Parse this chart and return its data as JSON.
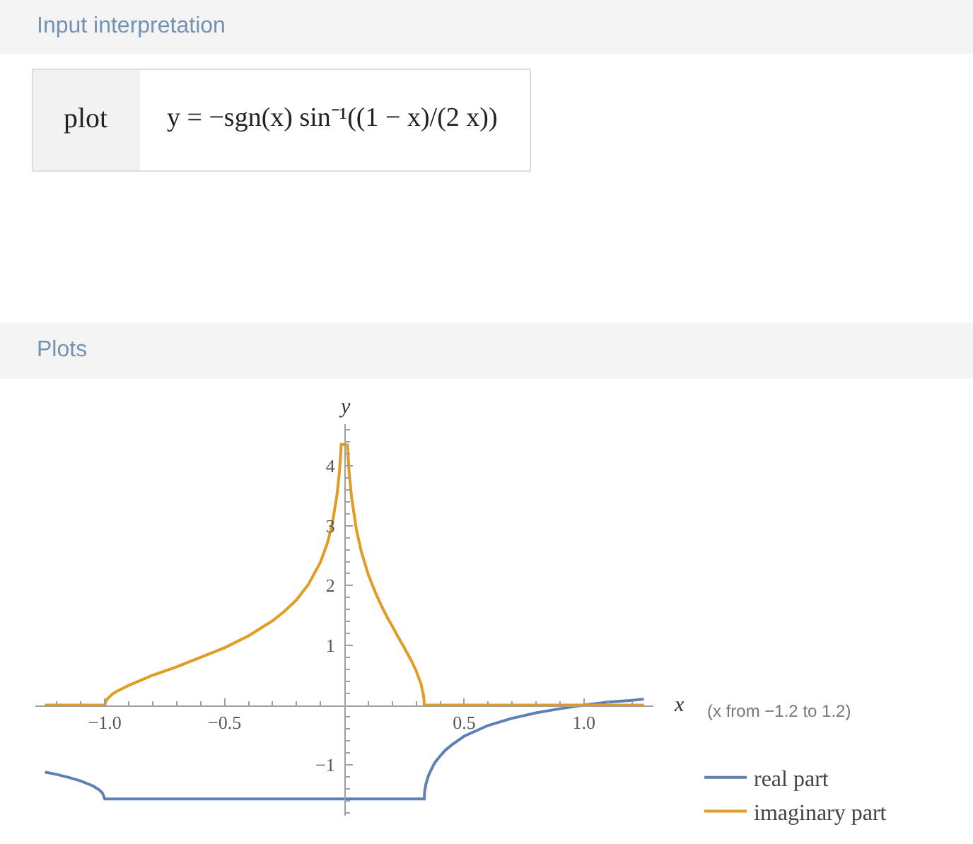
{
  "chart_data": {
    "type": "line",
    "annotations": [
      "Input interpretation",
      "plot",
      "y = −sgn(x) sin⁻¹((1 − x)/(2 x))",
      "Plots",
      "(x from −1.2 to 1.2)"
    ],
    "xlabel": "x",
    "ylabel": "y",
    "xlim": [
      -1.29,
      1.29
    ],
    "ylim": [
      -1.85,
      4.7
    ],
    "xticks": [
      {
        "value": -1,
        "label": "−1.0"
      },
      {
        "value": -0.5,
        "label": "−0.5"
      },
      0.5,
      {
        "value": 1,
        "label": "1.0"
      },
      {
        "value": -1.2,
        "label": null
      },
      {
        "value": -1.1,
        "label": null
      },
      {
        "value": -0.9,
        "label": null
      },
      {
        "value": -0.8,
        "label": null
      },
      {
        "value": -0.7,
        "label": null
      },
      {
        "value": -0.6,
        "label": null
      },
      {
        "value": -0.4,
        "label": null
      },
      {
        "value": -0.3,
        "label": null
      },
      {
        "value": -0.2,
        "label": null
      },
      {
        "value": -0.1,
        "label": null
      },
      {
        "value": 0.1,
        "label": null
      },
      {
        "value": 0.2,
        "label": null
      },
      {
        "value": 0.3,
        "label": null
      },
      {
        "value": 0.4,
        "label": null
      },
      {
        "value": 0.6,
        "label": null
      },
      {
        "value": 0.7,
        "label": null
      },
      {
        "value": 0.8,
        "label": null
      },
      {
        "value": 0.9,
        "label": null
      },
      {
        "value": 1.1,
        "label": null
      },
      {
        "value": 1.2,
        "label": null
      }
    ],
    "yticks": [
      {
        "value": -1,
        "label": "−1"
      },
      1,
      2,
      3,
      4,
      {
        "value": -1.8,
        "label": null
      },
      {
        "value": -1.6,
        "label": null
      },
      {
        "value": -1.4,
        "label": null
      },
      {
        "value": -1.2,
        "label": null
      },
      {
        "value": -0.8,
        "label": null
      },
      {
        "value": -0.6,
        "label": null
      },
      {
        "value": -0.4,
        "label": null
      },
      {
        "value": -0.2,
        "label": null
      },
      {
        "value": 0.2,
        "label": null
      },
      {
        "value": 0.4,
        "label": null
      },
      {
        "value": 0.6,
        "label": null
      },
      {
        "value": 0.8,
        "label": null
      },
      {
        "value": 1.2,
        "label": null
      },
      {
        "value": 1.4,
        "label": null
      },
      {
        "value": 1.6,
        "label": null
      },
      {
        "value": 1.8,
        "label": null
      },
      {
        "value": 2.2,
        "label": null
      },
      {
        "value": 2.4,
        "label": null
      },
      {
        "value": 2.6,
        "label": null
      },
      {
        "value": 2.8,
        "label": null
      },
      {
        "value": 3.2,
        "label": null
      },
      {
        "value": 3.4,
        "label": null
      },
      {
        "value": 3.6,
        "label": null
      },
      {
        "value": 3.8,
        "label": null
      },
      {
        "value": 4.2,
        "label": null
      },
      {
        "value": 4.4,
        "label": null
      },
      {
        "value": 4.6,
        "label": null
      }
    ],
    "legend": "bottom right",
    "series": [
      {
        "name": "real part",
        "color": "#5e81b5",
        "x": [
          -1.25,
          -1.2,
          -1.15,
          -1.1,
          -1.05,
          -1.03,
          -1.02,
          -1.01,
          -1,
          0.3333,
          0.335,
          0.34,
          0.35,
          0.36,
          0.37,
          0.38,
          0.4,
          0.42,
          0.45,
          0.5,
          0.6,
          0.7,
          0.8,
          0.9,
          1,
          1.1,
          1.2,
          1.25
        ],
        "values": [
          -1.12,
          -1.16,
          -1.21,
          -1.27,
          -1.35,
          -1.4,
          -1.43,
          -1.47,
          -1.57,
          -1.57,
          -1.45,
          -1.33,
          -1.19,
          -1.1,
          -1.02,
          -0.95,
          -0.85,
          -0.76,
          -0.66,
          -0.52,
          -0.34,
          -0.22,
          -0.13,
          -0.06,
          0,
          0.05,
          0.08,
          0.1
        ]
      },
      {
        "name": "imaginary part",
        "color": "#e19c24",
        "x": [
          -1.25,
          -1,
          -0.995,
          -0.99,
          -0.98,
          -0.97,
          -0.95,
          -0.9,
          -0.8,
          -0.7,
          -0.6,
          -0.5,
          -0.4,
          -0.3,
          -0.25,
          -0.2,
          -0.15,
          -0.1,
          -0.07,
          -0.05,
          -0.03,
          -0.02,
          -0.013,
          0.0128,
          0.02,
          0.03,
          0.05,
          0.07,
          0.1,
          0.13,
          0.15,
          0.18,
          0.2,
          0.22,
          0.25,
          0.28,
          0.3,
          0.32,
          0.33,
          0.332,
          0.3325,
          0.3333,
          1.25
        ],
        "values": [
          0,
          0,
          0.07,
          0.1,
          0.14,
          0.18,
          0.23,
          0.33,
          0.5,
          0.64,
          0.8,
          0.96,
          1.16,
          1.41,
          1.57,
          1.76,
          2.02,
          2.39,
          2.72,
          3.04,
          3.54,
          3.93,
          4.36,
          4.35,
          3.89,
          3.48,
          2.94,
          2.58,
          2.18,
          1.88,
          1.7,
          1.46,
          1.32,
          1.17,
          0.96,
          0.74,
          0.57,
          0.35,
          0.17,
          0.11,
          0.09,
          0,
          0
        ]
      }
    ]
  }
}
